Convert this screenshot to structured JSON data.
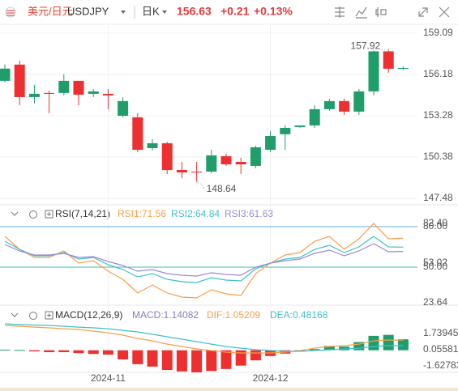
{
  "header": {
    "name": "美元/日元",
    "symbol": "USDJPY",
    "period": "日K",
    "price": "156.63",
    "change": "+0.21",
    "change_pct": "+0.13%"
  },
  "chart_data": [
    {
      "type": "candlestick",
      "categories": [
        null,
        null,
        null,
        null,
        null,
        null,
        null,
        "2024-11",
        null,
        null,
        null,
        null,
        null,
        null,
        null,
        null,
        null,
        null,
        "2024-12",
        null,
        null,
        null,
        null,
        null,
        null,
        null,
        null,
        null
      ],
      "open": [
        155.73,
        156.87,
        154.59,
        154.88,
        154.88,
        155.73,
        154.82,
        154.82,
        153.28,
        153.17,
        151.01,
        151.35,
        149.47,
        149.36,
        149.36,
        150.44,
        150.04,
        149.76,
        150.89,
        151.98,
        152.49,
        152.6,
        153.74,
        154.31,
        153.57,
        154.99,
        157.8,
        156.58
      ],
      "high": [
        156.87,
        157.15,
        155.45,
        155.05,
        156.19,
        155.73,
        155.16,
        155.16,
        154.59,
        153.46,
        151.63,
        151.46,
        150.04,
        150.04,
        150.89,
        150.61,
        150.33,
        151.18,
        152.2,
        152.6,
        152.6,
        154.02,
        154.48,
        154.48,
        155.16,
        157.85,
        157.92,
        156.75
      ],
      "low": [
        155.62,
        154.02,
        154.14,
        153.46,
        154.71,
        154.02,
        154.59,
        153.74,
        153.17,
        150.72,
        150.84,
        149.19,
        148.9,
        148.64,
        149.24,
        149.76,
        149.19,
        149.59,
        150.72,
        150.89,
        152.43,
        152.43,
        153.63,
        153.34,
        153.34,
        154.71,
        156.3,
        156.5
      ],
      "close": [
        156.59,
        154.59,
        154.82,
        154.82,
        155.73,
        154.76,
        154.99,
        154.71,
        154.31,
        150.89,
        151.35,
        149.47,
        149.3,
        149.3,
        150.5,
        149.87,
        149.87,
        151.07,
        151.86,
        152.43,
        152.6,
        153.74,
        154.31,
        153.57,
        154.99,
        157.8,
        156.58,
        156.63
      ],
      "up_color": "#1f9e6c",
      "down_color": "#ee2f2f",
      "ylim": [
        147.2,
        159.7
      ],
      "yticks": [
        159.09,
        156.18,
        153.28,
        150.38,
        147.48
      ],
      "grid": true
    },
    {
      "type": "line",
      "title": "RSI(7,14,21)",
      "series": [
        {
          "name": "RSI1:71.56",
          "color": "#f5a04a",
          "values": [
            72.8,
            63.2,
            57.2,
            57.2,
            62,
            53,
            54.8,
            47,
            41,
            30.8,
            36.8,
            30.8,
            27.8,
            27.2,
            33.2,
            30.2,
            29,
            45.2,
            53,
            59,
            60.8,
            69.2,
            72.8,
            63.2,
            71,
            82.4,
            71,
            71.56
          ]
        },
        {
          "name": "RSI2:64.84",
          "color": "#3fc1c9",
          "values": [
            69.2,
            63.2,
            58.4,
            58.4,
            60.8,
            56,
            57.2,
            51.8,
            48.2,
            42.8,
            45.2,
            41,
            39.2,
            38.6,
            42.2,
            40.4,
            39.8,
            48.8,
            53,
            56,
            57.2,
            63.2,
            66.2,
            60.8,
            65,
            72.8,
            65,
            64.84
          ]
        },
        {
          "name": "RSI3:61.63",
          "color": "#9a8ad6",
          "values": [
            66.8,
            62,
            59,
            59,
            60.2,
            57.2,
            57.8,
            54.2,
            51.2,
            47,
            48.2,
            45.2,
            44,
            43.4,
            45.8,
            44.6,
            44,
            50,
            53,
            54.8,
            56,
            60.2,
            62.6,
            58.4,
            62,
            67.4,
            61.4,
            61.63
          ]
        }
      ],
      "levels": [
        {
          "value": 80,
          "color": "#63aee6"
        },
        {
          "value": 50,
          "color": "#3dbdb4"
        }
      ],
      "ylim": [
        21.2,
        84.8
      ],
      "yticks": [
        {
          "value": 80,
          "label": "80.00"
        },
        {
          "value": 82.4,
          "label": "82.40"
        },
        53.02,
        {
          "value": 50,
          "label": "50.00"
        },
        23.64
      ]
    },
    {
      "type": "combo",
      "title": "MACD(12,26,9)",
      "series": [
        {
          "name": "MACD:1.14082",
          "kind": "bar",
          "color": "#8e7cc3",
          "values": [
            0.06,
            0.03,
            -0.12,
            -0.2,
            -0.2,
            -0.3,
            -0.38,
            -0.45,
            -0.95,
            -1.45,
            -1.7,
            -2.05,
            -2.2,
            -2.3,
            -2.15,
            -1.95,
            -1.6,
            -1.05,
            -0.6,
            -0.35,
            -0.1,
            0.12,
            0.45,
            0.38,
            0.85,
            1.5,
            1.6,
            1.14082
          ]
        },
        {
          "name": "DIF:1.05209",
          "kind": "line",
          "color": "#f5a04a",
          "values": [
            2.58,
            2.5,
            2.41,
            2.33,
            2.24,
            2.16,
            1.99,
            1.82,
            1.57,
            1.23,
            0.98,
            0.64,
            0.39,
            0.14,
            -0.03,
            -0.2,
            -0.28,
            -0.28,
            -0.28,
            -0.2,
            -0.03,
            0.22,
            0.39,
            0.48,
            0.64,
            0.98,
            1.07,
            1.05209
          ]
        },
        {
          "name": "DEA:0.48168",
          "kind": "line",
          "color": "#3fc1c9",
          "values": [
            2.75,
            2.67,
            2.62,
            2.58,
            2.5,
            2.41,
            2.33,
            2.24,
            2.07,
            1.91,
            1.66,
            1.4,
            1.15,
            0.9,
            0.64,
            0.39,
            0.22,
            0.06,
            -0.03,
            -0.11,
            -0.11,
            -0.03,
            0.06,
            0.14,
            0.22,
            0.39,
            0.48,
            0.48168
          ]
        }
      ],
      "up_color": "#1f9e6c",
      "down_color": "#ee2f2f",
      "ylim": [
        -2.47,
        2.92
      ],
      "yticks": [
        1.73945,
        0.05581,
        -1.62783
      ]
    }
  ]
}
